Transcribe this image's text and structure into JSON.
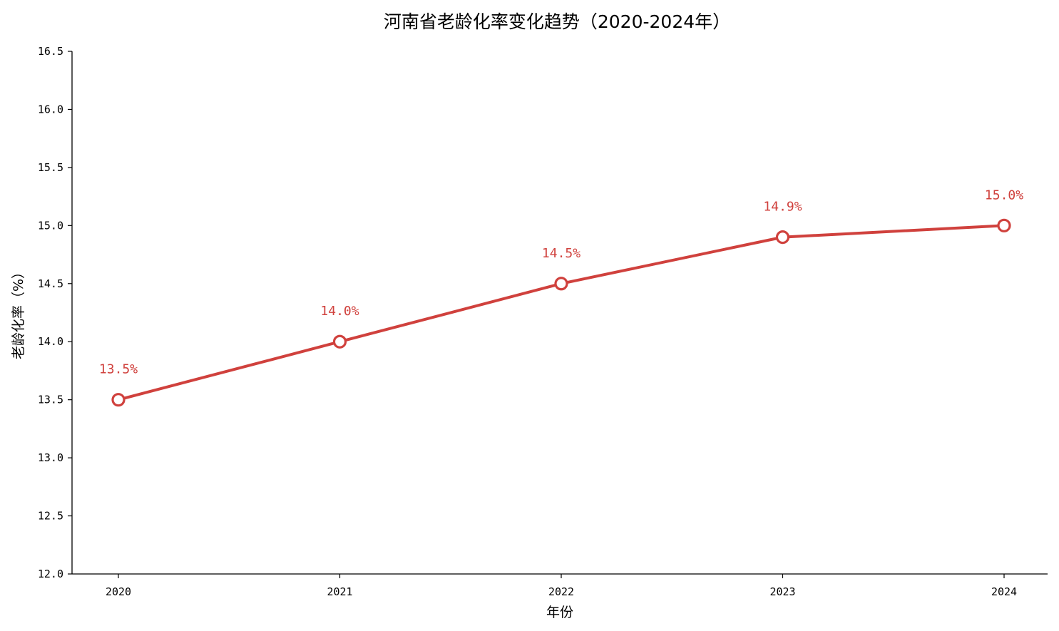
{
  "chart_data": {
    "type": "line",
    "title": "河南省老龄化率变化趋势（2020-2024年）",
    "xlabel": "年份",
    "ylabel": "老龄化率（%）",
    "categories": [
      "2020",
      "2021",
      "2022",
      "2023",
      "2024"
    ],
    "series": [
      {
        "values": [
          13.5,
          14.0,
          14.5,
          14.9,
          15.0
        ],
        "data_labels": [
          "13.5%",
          "14.0%",
          "14.5%",
          "14.9%",
          "15.0%"
        ],
        "color": "#d0413d",
        "marker": "hollow-circle"
      }
    ],
    "ylim": [
      12.0,
      16.5
    ],
    "y_ticks": [
      "12.0",
      "12.5",
      "13.0",
      "13.5",
      "14.0",
      "14.5",
      "15.0",
      "15.5",
      "16.0",
      "16.5"
    ],
    "grid": false,
    "legend": "none"
  }
}
